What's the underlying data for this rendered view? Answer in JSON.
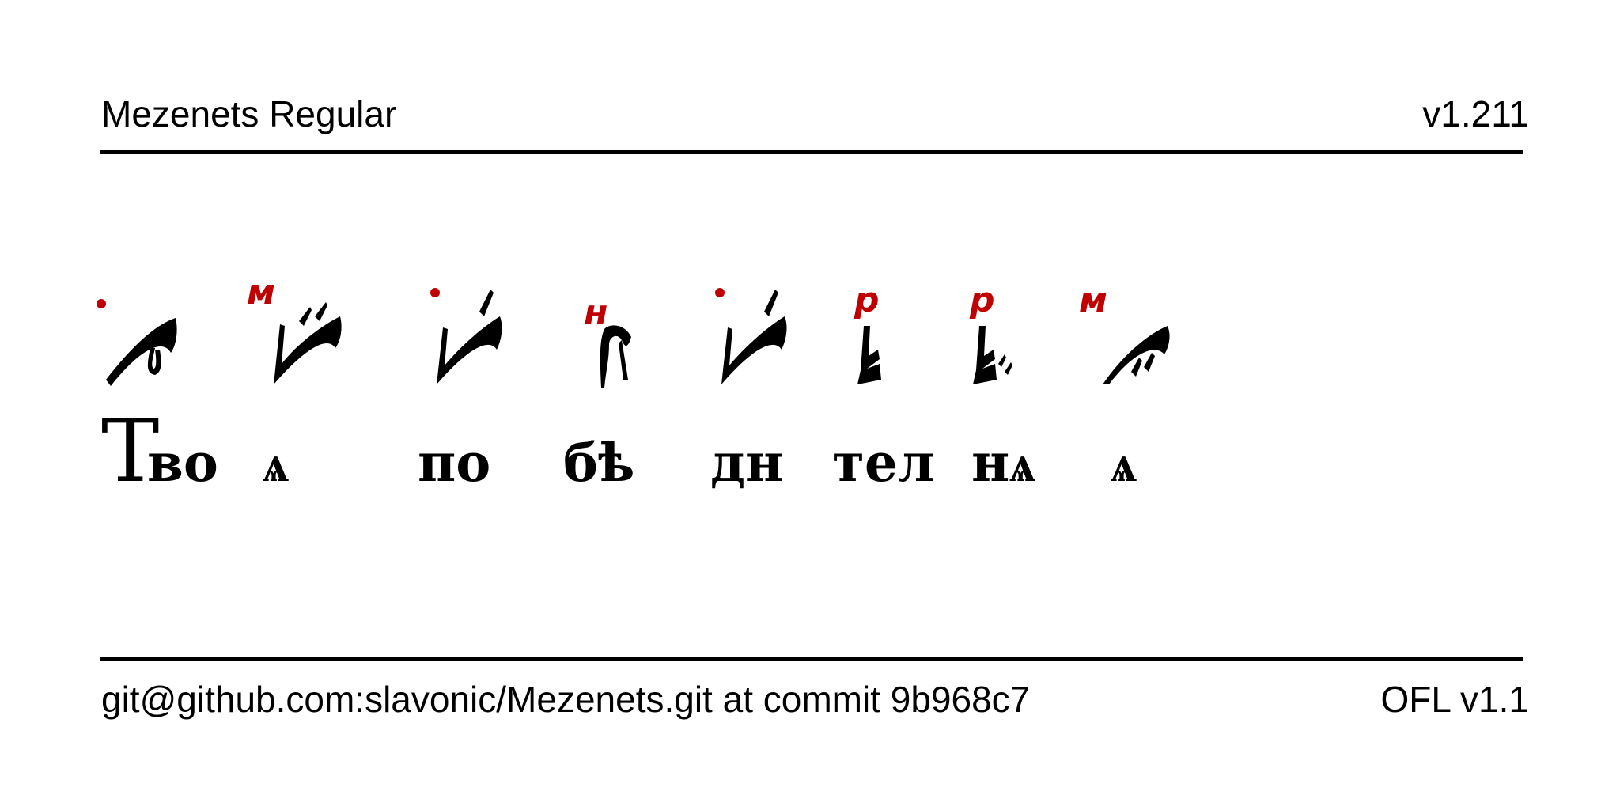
{
  "header": {
    "title": "Mezenets Regular",
    "version": "v1.211"
  },
  "footer": {
    "source": "git@github.com:slavonic/Mezenets.git at commit 9b968c7",
    "license": "OFL v1.1"
  },
  "specimen": {
    "colors": {
      "neume": "#000000",
      "mark": "#c00000"
    },
    "syllables": [
      "Т",
      "во",
      "ѧ",
      "по",
      "бѣ",
      "дн",
      "тел",
      "нѧ",
      "ѧ"
    ],
    "marks": [
      "м",
      "н",
      "р",
      "р",
      "м"
    ]
  }
}
